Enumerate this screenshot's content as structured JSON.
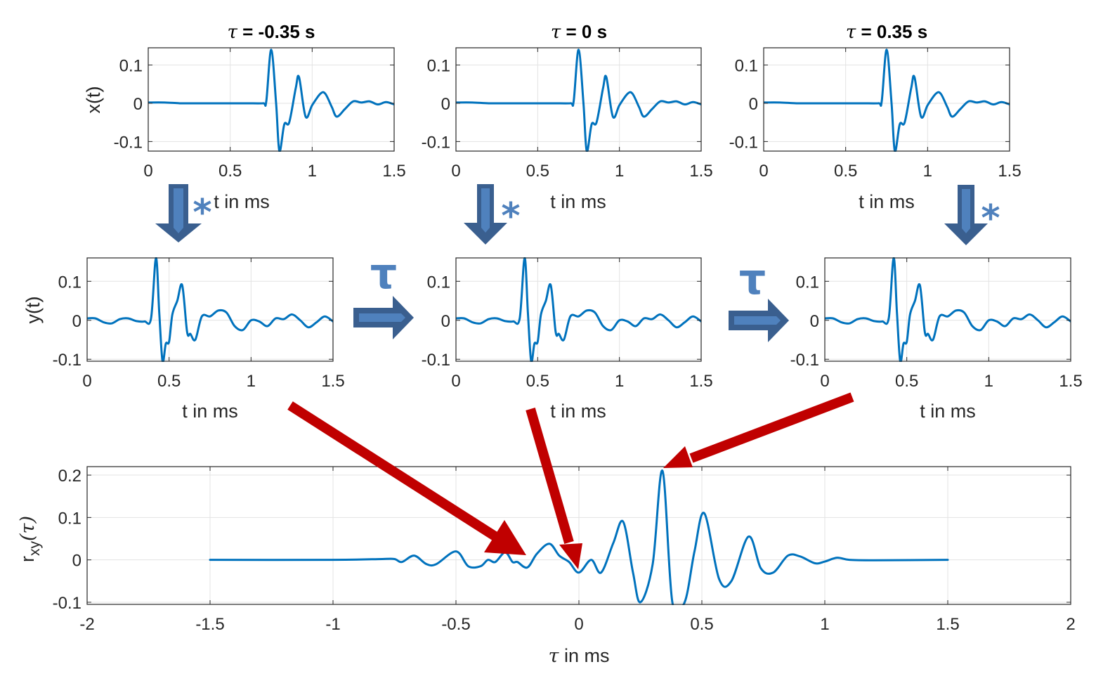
{
  "colors": {
    "line": "#0072BD",
    "axis": "#262626",
    "grid": "#E3E3E3",
    "arrow_dark": "#3A5F8F",
    "arrow_light": "#4F81BD",
    "red_arrow": "#C00000"
  },
  "titles": {
    "left": {
      "tau": "τ",
      "rest": " = -0.35 s"
    },
    "mid": {
      "tau": "τ",
      "rest": " = 0 s"
    },
    "right": {
      "tau": "τ",
      "rest": " = 0.35 s"
    }
  },
  "labels": {
    "x_top": "t in ms",
    "x_mid": "t in ms",
    "y_top": "x(t)",
    "y_mid": "y(t)",
    "y_bottom_main": "r",
    "y_bottom_sub": "xy",
    "y_bottom_arg": "(τ)",
    "x_bottom_tau": "τ",
    "x_bottom_rest": " in ms",
    "convolution_symbol": "*",
    "shift_symbol": "τ"
  },
  "ticks": {
    "t_x": [
      "0",
      "0.5",
      "1",
      "1.5"
    ],
    "x_y": [
      "0.1",
      "0",
      "-0.1"
    ],
    "y_y": [
      "0.1",
      "0",
      "-0.1"
    ],
    "r_x": [
      "-2",
      "-1.5",
      "-1",
      "-0.5",
      "0",
      "0.5",
      "1",
      "1.5",
      "2"
    ],
    "r_y": [
      "0.2",
      "0.1",
      "0",
      "-0.1"
    ]
  },
  "chart_data": [
    {
      "type": "line",
      "title": "τ = -0.35 s",
      "xlabel": "t in ms",
      "ylabel": "x(t)",
      "xlim": [
        0,
        1.5
      ],
      "ylim": [
        -0.125,
        0.145
      ],
      "grid": true,
      "x": [
        0,
        0.1,
        0.2,
        0.3,
        0.4,
        0.5,
        0.6,
        0.7,
        0.72,
        0.75,
        0.78,
        0.8,
        0.83,
        0.86,
        0.9,
        0.92,
        0.96,
        1.0,
        1.05,
        1.08,
        1.12,
        1.15,
        1.2,
        1.25,
        1.3,
        1.35,
        1.4,
        1.45,
        1.5
      ],
      "values": [
        0.002,
        0.002,
        0.0,
        0.0,
        0.0,
        0.0,
        0.0,
        0.0,
        0.005,
        0.14,
        0.0,
        -0.125,
        -0.055,
        -0.05,
        0.04,
        0.068,
        -0.035,
        -0.005,
        0.025,
        0.025,
        -0.01,
        -0.035,
        -0.015,
        0.005,
        0.002,
        0.005,
        -0.003,
        0.003,
        -0.003
      ]
    },
    {
      "type": "line",
      "title": "τ = 0 s",
      "xlabel": "t in ms",
      "ylabel": "",
      "xlim": [
        0,
        1.5
      ],
      "ylim": [
        -0.125,
        0.145
      ],
      "grid": true,
      "note": "same x(t) as left panel"
    },
    {
      "type": "line",
      "title": "τ = 0.35 s",
      "xlabel": "t in ms",
      "ylabel": "",
      "xlim": [
        0,
        1.5
      ],
      "ylim": [
        -0.125,
        0.145
      ],
      "grid": true,
      "note": "same x(t) as left panel"
    },
    {
      "type": "line",
      "title": "",
      "xlabel": "t in ms",
      "ylabel": "y(t)",
      "xlim": [
        0,
        1.5
      ],
      "ylim": [
        -0.105,
        0.16
      ],
      "grid": true,
      "x": [
        0,
        0.05,
        0.1,
        0.15,
        0.2,
        0.25,
        0.3,
        0.35,
        0.39,
        0.42,
        0.44,
        0.46,
        0.48,
        0.5,
        0.52,
        0.55,
        0.58,
        0.61,
        0.63,
        0.66,
        0.7,
        0.75,
        0.8,
        0.85,
        0.9,
        0.95,
        1.0,
        1.05,
        1.1,
        1.15,
        1.2,
        1.25,
        1.3,
        1.35,
        1.4,
        1.45,
        1.5
      ],
      "values": [
        0.005,
        0.005,
        -0.005,
        -0.008,
        0.003,
        0.005,
        -0.002,
        -0.003,
        0.005,
        0.16,
        0.02,
        -0.105,
        -0.06,
        -0.055,
        0.015,
        0.05,
        0.09,
        -0.03,
        -0.035,
        -0.05,
        0.01,
        0.01,
        0.025,
        0.02,
        -0.015,
        -0.025,
        0.0,
        -0.003,
        -0.015,
        0.005,
        0.003,
        0.015,
        0.0,
        -0.018,
        -0.005,
        0.01,
        -0.003
      ]
    },
    {
      "type": "line",
      "title": "",
      "xlabel": "t in ms",
      "ylabel": "",
      "xlim": [
        0,
        1.5
      ],
      "ylim": [
        -0.105,
        0.16
      ],
      "grid": true,
      "note": "same y(t) as left panel"
    },
    {
      "type": "line",
      "title": "",
      "xlabel": "t in ms",
      "ylabel": "",
      "xlim": [
        0,
        1.5
      ],
      "ylim": [
        -0.105,
        0.16
      ],
      "grid": true,
      "note": "same y(t) as left panel"
    },
    {
      "type": "line",
      "title": "",
      "xlabel": "τ in ms",
      "ylabel": "r_xy(τ)",
      "xlim": [
        -2,
        2
      ],
      "ylim": [
        -0.105,
        0.22
      ],
      "grid": true,
      "x": [
        -1.5,
        -1.0,
        -0.8,
        -0.75,
        -0.72,
        -0.67,
        -0.62,
        -0.58,
        -0.5,
        -0.45,
        -0.4,
        -0.37,
        -0.34,
        -0.3,
        -0.27,
        -0.25,
        -0.21,
        -0.17,
        -0.12,
        -0.08,
        -0.04,
        0.0,
        0.05,
        0.09,
        0.14,
        0.18,
        0.22,
        0.25,
        0.3,
        0.34,
        0.38,
        0.43,
        0.47,
        0.51,
        0.57,
        0.62,
        0.69,
        0.74,
        0.79,
        0.85,
        0.9,
        0.96,
        1.0,
        1.05,
        1.1,
        1.2,
        1.5
      ],
      "values": [
        0.0,
        0.0,
        0.002,
        0.002,
        -0.005,
        0.01,
        -0.01,
        -0.01,
        0.02,
        -0.015,
        -0.015,
        0.0,
        -0.005,
        0.018,
        -0.005,
        -0.005,
        -0.018,
        0.015,
        0.038,
        0.01,
        -0.005,
        -0.03,
        0.0,
        -0.03,
        0.04,
        0.09,
        -0.03,
        -0.1,
        -0.01,
        0.21,
        -0.1,
        -0.1,
        0.02,
        0.11,
        -0.045,
        -0.05,
        0.055,
        -0.02,
        -0.03,
        0.01,
        0.008,
        -0.008,
        -0.004,
        0.005,
        0.0,
        -0.001,
        0.0
      ]
    }
  ],
  "annotations": {
    "down_arrows": 3,
    "right_arrows": 2,
    "red_arrows_to_peaks": [
      "τ = -0.35 → r_xy(-0.2)",
      "τ = 0 → r_xy(0)",
      "τ = 0.35 → r_xy(0.35) peak"
    ]
  }
}
